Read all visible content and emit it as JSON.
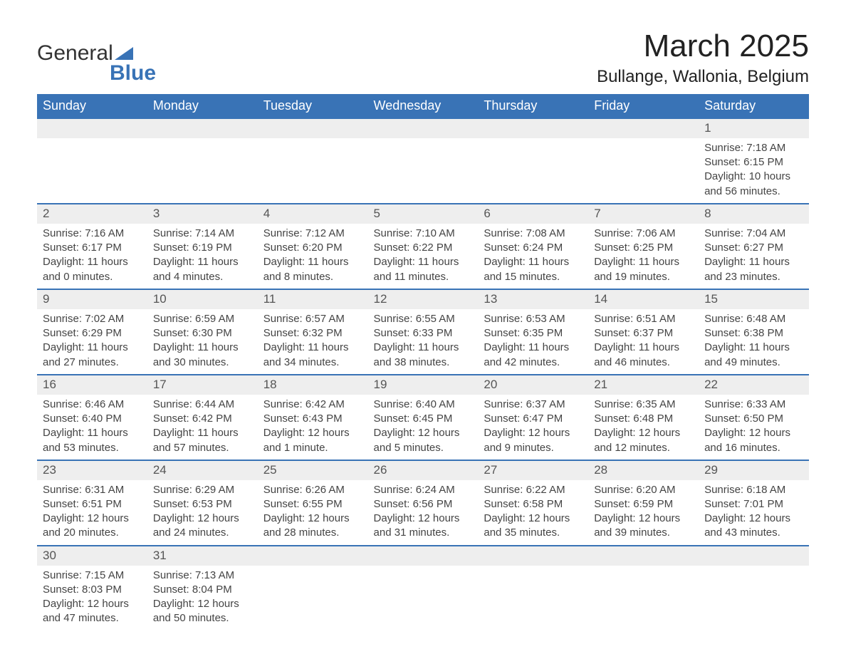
{
  "logo": {
    "word1": "General",
    "word2": "Blue"
  },
  "title": "March 2025",
  "location": "Bullange, Wallonia, Belgium",
  "colors": {
    "header_bg": "#3973b6",
    "header_text": "#ffffff",
    "row_stripe": "#eeeeee",
    "divider": "#3973b6",
    "text": "#444444"
  },
  "typography": {
    "title_fontsize": 44,
    "location_fontsize": 24,
    "dayheader_fontsize": 18,
    "body_fontsize": 15,
    "font_family": "Arial"
  },
  "day_headers": [
    "Sunday",
    "Monday",
    "Tuesday",
    "Wednesday",
    "Thursday",
    "Friday",
    "Saturday"
  ],
  "weeks": [
    [
      null,
      null,
      null,
      null,
      null,
      null,
      {
        "n": "1",
        "sunrise": "Sunrise: 7:18 AM",
        "sunset": "Sunset: 6:15 PM",
        "dl1": "Daylight: 10 hours",
        "dl2": "and 56 minutes."
      }
    ],
    [
      {
        "n": "2",
        "sunrise": "Sunrise: 7:16 AM",
        "sunset": "Sunset: 6:17 PM",
        "dl1": "Daylight: 11 hours",
        "dl2": "and 0 minutes."
      },
      {
        "n": "3",
        "sunrise": "Sunrise: 7:14 AM",
        "sunset": "Sunset: 6:19 PM",
        "dl1": "Daylight: 11 hours",
        "dl2": "and 4 minutes."
      },
      {
        "n": "4",
        "sunrise": "Sunrise: 7:12 AM",
        "sunset": "Sunset: 6:20 PM",
        "dl1": "Daylight: 11 hours",
        "dl2": "and 8 minutes."
      },
      {
        "n": "5",
        "sunrise": "Sunrise: 7:10 AM",
        "sunset": "Sunset: 6:22 PM",
        "dl1": "Daylight: 11 hours",
        "dl2": "and 11 minutes."
      },
      {
        "n": "6",
        "sunrise": "Sunrise: 7:08 AM",
        "sunset": "Sunset: 6:24 PM",
        "dl1": "Daylight: 11 hours",
        "dl2": "and 15 minutes."
      },
      {
        "n": "7",
        "sunrise": "Sunrise: 7:06 AM",
        "sunset": "Sunset: 6:25 PM",
        "dl1": "Daylight: 11 hours",
        "dl2": "and 19 minutes."
      },
      {
        "n": "8",
        "sunrise": "Sunrise: 7:04 AM",
        "sunset": "Sunset: 6:27 PM",
        "dl1": "Daylight: 11 hours",
        "dl2": "and 23 minutes."
      }
    ],
    [
      {
        "n": "9",
        "sunrise": "Sunrise: 7:02 AM",
        "sunset": "Sunset: 6:29 PM",
        "dl1": "Daylight: 11 hours",
        "dl2": "and 27 minutes."
      },
      {
        "n": "10",
        "sunrise": "Sunrise: 6:59 AM",
        "sunset": "Sunset: 6:30 PM",
        "dl1": "Daylight: 11 hours",
        "dl2": "and 30 minutes."
      },
      {
        "n": "11",
        "sunrise": "Sunrise: 6:57 AM",
        "sunset": "Sunset: 6:32 PM",
        "dl1": "Daylight: 11 hours",
        "dl2": "and 34 minutes."
      },
      {
        "n": "12",
        "sunrise": "Sunrise: 6:55 AM",
        "sunset": "Sunset: 6:33 PM",
        "dl1": "Daylight: 11 hours",
        "dl2": "and 38 minutes."
      },
      {
        "n": "13",
        "sunrise": "Sunrise: 6:53 AM",
        "sunset": "Sunset: 6:35 PM",
        "dl1": "Daylight: 11 hours",
        "dl2": "and 42 minutes."
      },
      {
        "n": "14",
        "sunrise": "Sunrise: 6:51 AM",
        "sunset": "Sunset: 6:37 PM",
        "dl1": "Daylight: 11 hours",
        "dl2": "and 46 minutes."
      },
      {
        "n": "15",
        "sunrise": "Sunrise: 6:48 AM",
        "sunset": "Sunset: 6:38 PM",
        "dl1": "Daylight: 11 hours",
        "dl2": "and 49 minutes."
      }
    ],
    [
      {
        "n": "16",
        "sunrise": "Sunrise: 6:46 AM",
        "sunset": "Sunset: 6:40 PM",
        "dl1": "Daylight: 11 hours",
        "dl2": "and 53 minutes."
      },
      {
        "n": "17",
        "sunrise": "Sunrise: 6:44 AM",
        "sunset": "Sunset: 6:42 PM",
        "dl1": "Daylight: 11 hours",
        "dl2": "and 57 minutes."
      },
      {
        "n": "18",
        "sunrise": "Sunrise: 6:42 AM",
        "sunset": "Sunset: 6:43 PM",
        "dl1": "Daylight: 12 hours",
        "dl2": "and 1 minute."
      },
      {
        "n": "19",
        "sunrise": "Sunrise: 6:40 AM",
        "sunset": "Sunset: 6:45 PM",
        "dl1": "Daylight: 12 hours",
        "dl2": "and 5 minutes."
      },
      {
        "n": "20",
        "sunrise": "Sunrise: 6:37 AM",
        "sunset": "Sunset: 6:47 PM",
        "dl1": "Daylight: 12 hours",
        "dl2": "and 9 minutes."
      },
      {
        "n": "21",
        "sunrise": "Sunrise: 6:35 AM",
        "sunset": "Sunset: 6:48 PM",
        "dl1": "Daylight: 12 hours",
        "dl2": "and 12 minutes."
      },
      {
        "n": "22",
        "sunrise": "Sunrise: 6:33 AM",
        "sunset": "Sunset: 6:50 PM",
        "dl1": "Daylight: 12 hours",
        "dl2": "and 16 minutes."
      }
    ],
    [
      {
        "n": "23",
        "sunrise": "Sunrise: 6:31 AM",
        "sunset": "Sunset: 6:51 PM",
        "dl1": "Daylight: 12 hours",
        "dl2": "and 20 minutes."
      },
      {
        "n": "24",
        "sunrise": "Sunrise: 6:29 AM",
        "sunset": "Sunset: 6:53 PM",
        "dl1": "Daylight: 12 hours",
        "dl2": "and 24 minutes."
      },
      {
        "n": "25",
        "sunrise": "Sunrise: 6:26 AM",
        "sunset": "Sunset: 6:55 PM",
        "dl1": "Daylight: 12 hours",
        "dl2": "and 28 minutes."
      },
      {
        "n": "26",
        "sunrise": "Sunrise: 6:24 AM",
        "sunset": "Sunset: 6:56 PM",
        "dl1": "Daylight: 12 hours",
        "dl2": "and 31 minutes."
      },
      {
        "n": "27",
        "sunrise": "Sunrise: 6:22 AM",
        "sunset": "Sunset: 6:58 PM",
        "dl1": "Daylight: 12 hours",
        "dl2": "and 35 minutes."
      },
      {
        "n": "28",
        "sunrise": "Sunrise: 6:20 AM",
        "sunset": "Sunset: 6:59 PM",
        "dl1": "Daylight: 12 hours",
        "dl2": "and 39 minutes."
      },
      {
        "n": "29",
        "sunrise": "Sunrise: 6:18 AM",
        "sunset": "Sunset: 7:01 PM",
        "dl1": "Daylight: 12 hours",
        "dl2": "and 43 minutes."
      }
    ],
    [
      {
        "n": "30",
        "sunrise": "Sunrise: 7:15 AM",
        "sunset": "Sunset: 8:03 PM",
        "dl1": "Daylight: 12 hours",
        "dl2": "and 47 minutes."
      },
      {
        "n": "31",
        "sunrise": "Sunrise: 7:13 AM",
        "sunset": "Sunset: 8:04 PM",
        "dl1": "Daylight: 12 hours",
        "dl2": "and 50 minutes."
      },
      null,
      null,
      null,
      null,
      null
    ]
  ]
}
